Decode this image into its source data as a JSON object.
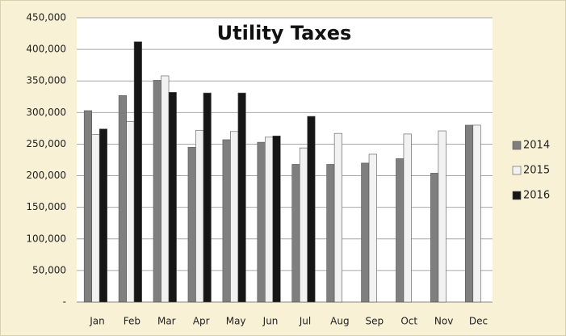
{
  "chart_data": {
    "type": "bar",
    "title": "Utility Taxes",
    "categories": [
      "Jan",
      "Feb",
      "Mar",
      "Apr",
      "May",
      "Jun",
      "Jul",
      "Aug",
      "Sep",
      "Oct",
      "Nov",
      "Dec"
    ],
    "series": [
      {
        "name": "2014",
        "color": "#7f7f7f",
        "values": [
          303000,
          327000,
          351000,
          245000,
          257000,
          253000,
          218000,
          218000,
          220000,
          227000,
          204000,
          280000
        ]
      },
      {
        "name": "2015",
        "color": "#f2f2f2",
        "values": [
          265000,
          286000,
          358000,
          272000,
          270000,
          261000,
          244000,
          267000,
          234000,
          266000,
          271000,
          280000
        ]
      },
      {
        "name": "2016",
        "color": "#161616",
        "values": [
          274000,
          412000,
          332000,
          331000,
          331000,
          263000,
          294000,
          null,
          null,
          null,
          null,
          null
        ]
      }
    ],
    "ylim": [
      0,
      450000
    ],
    "yticks": [
      {
        "value": 0,
        "label": "-"
      },
      {
        "value": 50000,
        "label": "50,000"
      },
      {
        "value": 100000,
        "label": "100,000"
      },
      {
        "value": 150000,
        "label": "150,000"
      },
      {
        "value": 200000,
        "label": "200,000"
      },
      {
        "value": 250000,
        "label": "250,000"
      },
      {
        "value": 300000,
        "label": "300,000"
      },
      {
        "value": 350000,
        "label": "350,000"
      },
      {
        "value": 400000,
        "label": "400,000"
      },
      {
        "value": 450000,
        "label": "450,000"
      }
    ],
    "grid": true,
    "legend": "right"
  }
}
